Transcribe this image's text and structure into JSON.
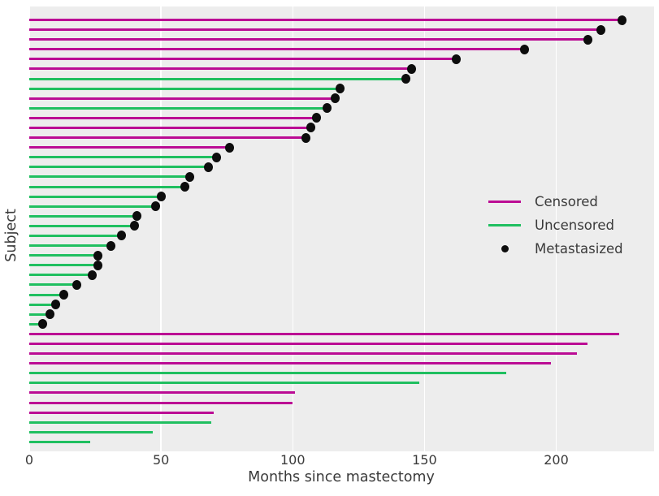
{
  "chart_data": {
    "type": "lollipop",
    "title": "",
    "xlabel": "Months since mastectomy",
    "ylabel": "Subject",
    "x_ticks": [
      0,
      50,
      100,
      150,
      200
    ],
    "xlim": [
      0,
      237
    ],
    "ylim_subjects": 44,
    "grid": "vertical white gridlines on gray panel",
    "legend_position": "center-right, no frame",
    "plot_background": "#ededed",
    "gridline_color": "#ffffff",
    "text_color": "#3a3a3a",
    "colors": {
      "censored": "#bb0c94",
      "uncensored": "#20bf60",
      "metastasized": "#0d0d0d"
    },
    "legend": {
      "entries": [
        {
          "label": "Censored",
          "marker": "line",
          "color": "#bb0c94"
        },
        {
          "label": "Uncensored",
          "marker": "line",
          "color": "#20bf60"
        },
        {
          "label": "Metastasized",
          "marker": "dot",
          "color": "#0d0d0d"
        }
      ]
    },
    "row_order": "top to bottom; each row is one subject; line spans 0 to time; censored rows magenta, uncensored rows green; metastasized rows end with a black dot",
    "subjects": [
      {
        "time": 225,
        "censored": true,
        "metastasized": true
      },
      {
        "time": 217,
        "censored": true,
        "metastasized": true
      },
      {
        "time": 212,
        "censored": true,
        "metastasized": true
      },
      {
        "time": 188,
        "censored": true,
        "metastasized": true
      },
      {
        "time": 162,
        "censored": true,
        "metastasized": true
      },
      {
        "time": 145,
        "censored": true,
        "metastasized": true
      },
      {
        "time": 143,
        "censored": false,
        "metastasized": true
      },
      {
        "time": 118,
        "censored": false,
        "metastasized": true
      },
      {
        "time": 116,
        "censored": true,
        "metastasized": true
      },
      {
        "time": 113,
        "censored": false,
        "metastasized": true
      },
      {
        "time": 109,
        "censored": true,
        "metastasized": true
      },
      {
        "time": 107,
        "censored": true,
        "metastasized": true
      },
      {
        "time": 105,
        "censored": true,
        "metastasized": true
      },
      {
        "time": 76,
        "censored": true,
        "metastasized": true
      },
      {
        "time": 71,
        "censored": false,
        "metastasized": true
      },
      {
        "time": 68,
        "censored": false,
        "metastasized": true
      },
      {
        "time": 61,
        "censored": false,
        "metastasized": true
      },
      {
        "time": 59,
        "censored": false,
        "metastasized": true
      },
      {
        "time": 50,
        "censored": false,
        "metastasized": true
      },
      {
        "time": 48,
        "censored": false,
        "metastasized": true
      },
      {
        "time": 41,
        "censored": false,
        "metastasized": true
      },
      {
        "time": 40,
        "censored": false,
        "metastasized": true
      },
      {
        "time": 35,
        "censored": false,
        "metastasized": true
      },
      {
        "time": 31,
        "censored": false,
        "metastasized": true
      },
      {
        "time": 26,
        "censored": false,
        "metastasized": true
      },
      {
        "time": 26,
        "censored": false,
        "metastasized": true
      },
      {
        "time": 24,
        "censored": false,
        "metastasized": true
      },
      {
        "time": 18,
        "censored": false,
        "metastasized": true
      },
      {
        "time": 13,
        "censored": false,
        "metastasized": true
      },
      {
        "time": 10,
        "censored": false,
        "metastasized": true
      },
      {
        "time": 8,
        "censored": false,
        "metastasized": true
      },
      {
        "time": 5,
        "censored": false,
        "metastasized": true
      },
      {
        "time": 224,
        "censored": true,
        "metastasized": false
      },
      {
        "time": 212,
        "censored": true,
        "metastasized": false
      },
      {
        "time": 208,
        "censored": true,
        "metastasized": false
      },
      {
        "time": 198,
        "censored": true,
        "metastasized": false
      },
      {
        "time": 181,
        "censored": false,
        "metastasized": false
      },
      {
        "time": 148,
        "censored": false,
        "metastasized": false
      },
      {
        "time": 101,
        "censored": true,
        "metastasized": false
      },
      {
        "time": 100,
        "censored": true,
        "metastasized": false
      },
      {
        "time": 70,
        "censored": true,
        "metastasized": false
      },
      {
        "time": 69,
        "censored": false,
        "metastasized": false
      },
      {
        "time": 47,
        "censored": false,
        "metastasized": false
      },
      {
        "time": 23,
        "censored": false,
        "metastasized": false
      }
    ]
  }
}
